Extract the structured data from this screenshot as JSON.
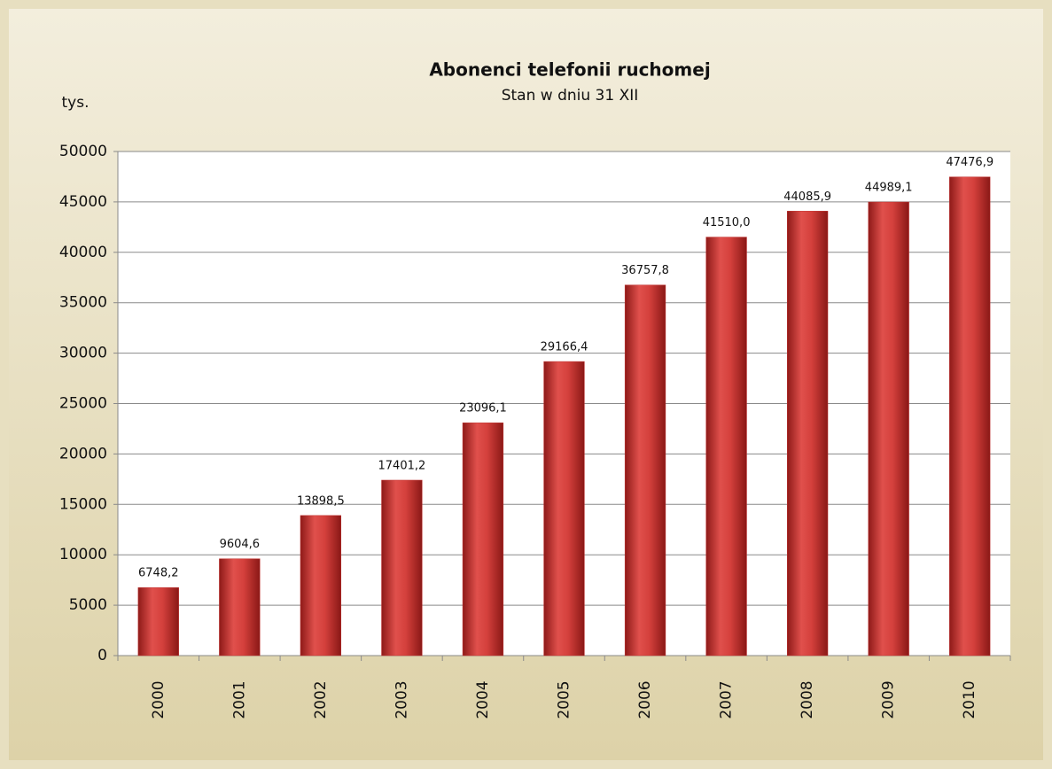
{
  "chart_data": {
    "type": "bar",
    "title": "Abonenci telefonii ruchomej",
    "subtitle": "Stan w dniu 31 XII",
    "y_label": "tys.",
    "categories": [
      "2000",
      "2001",
      "2002",
      "2003",
      "2004",
      "2005",
      "2006",
      "2007",
      "2008",
      "2009",
      "2010"
    ],
    "values": [
      6748.2,
      9604.6,
      13898.5,
      17401.2,
      23096.1,
      29166.4,
      36757.8,
      41510.0,
      44085.9,
      44989.1,
      47476.9
    ],
    "value_labels": [
      "6748,2",
      "9604,6",
      "13898,5",
      "17401,2",
      "23096,1",
      "29166,4",
      "36757,8",
      "41510,0",
      "44085,9",
      "44989,1",
      "47476,9"
    ],
    "color": "#c0302e",
    "ylim": [
      0,
      50000
    ],
    "yticks": [
      0,
      5000,
      10000,
      15000,
      20000,
      25000,
      30000,
      35000,
      40000,
      45000,
      50000
    ],
    "grid": true
  }
}
